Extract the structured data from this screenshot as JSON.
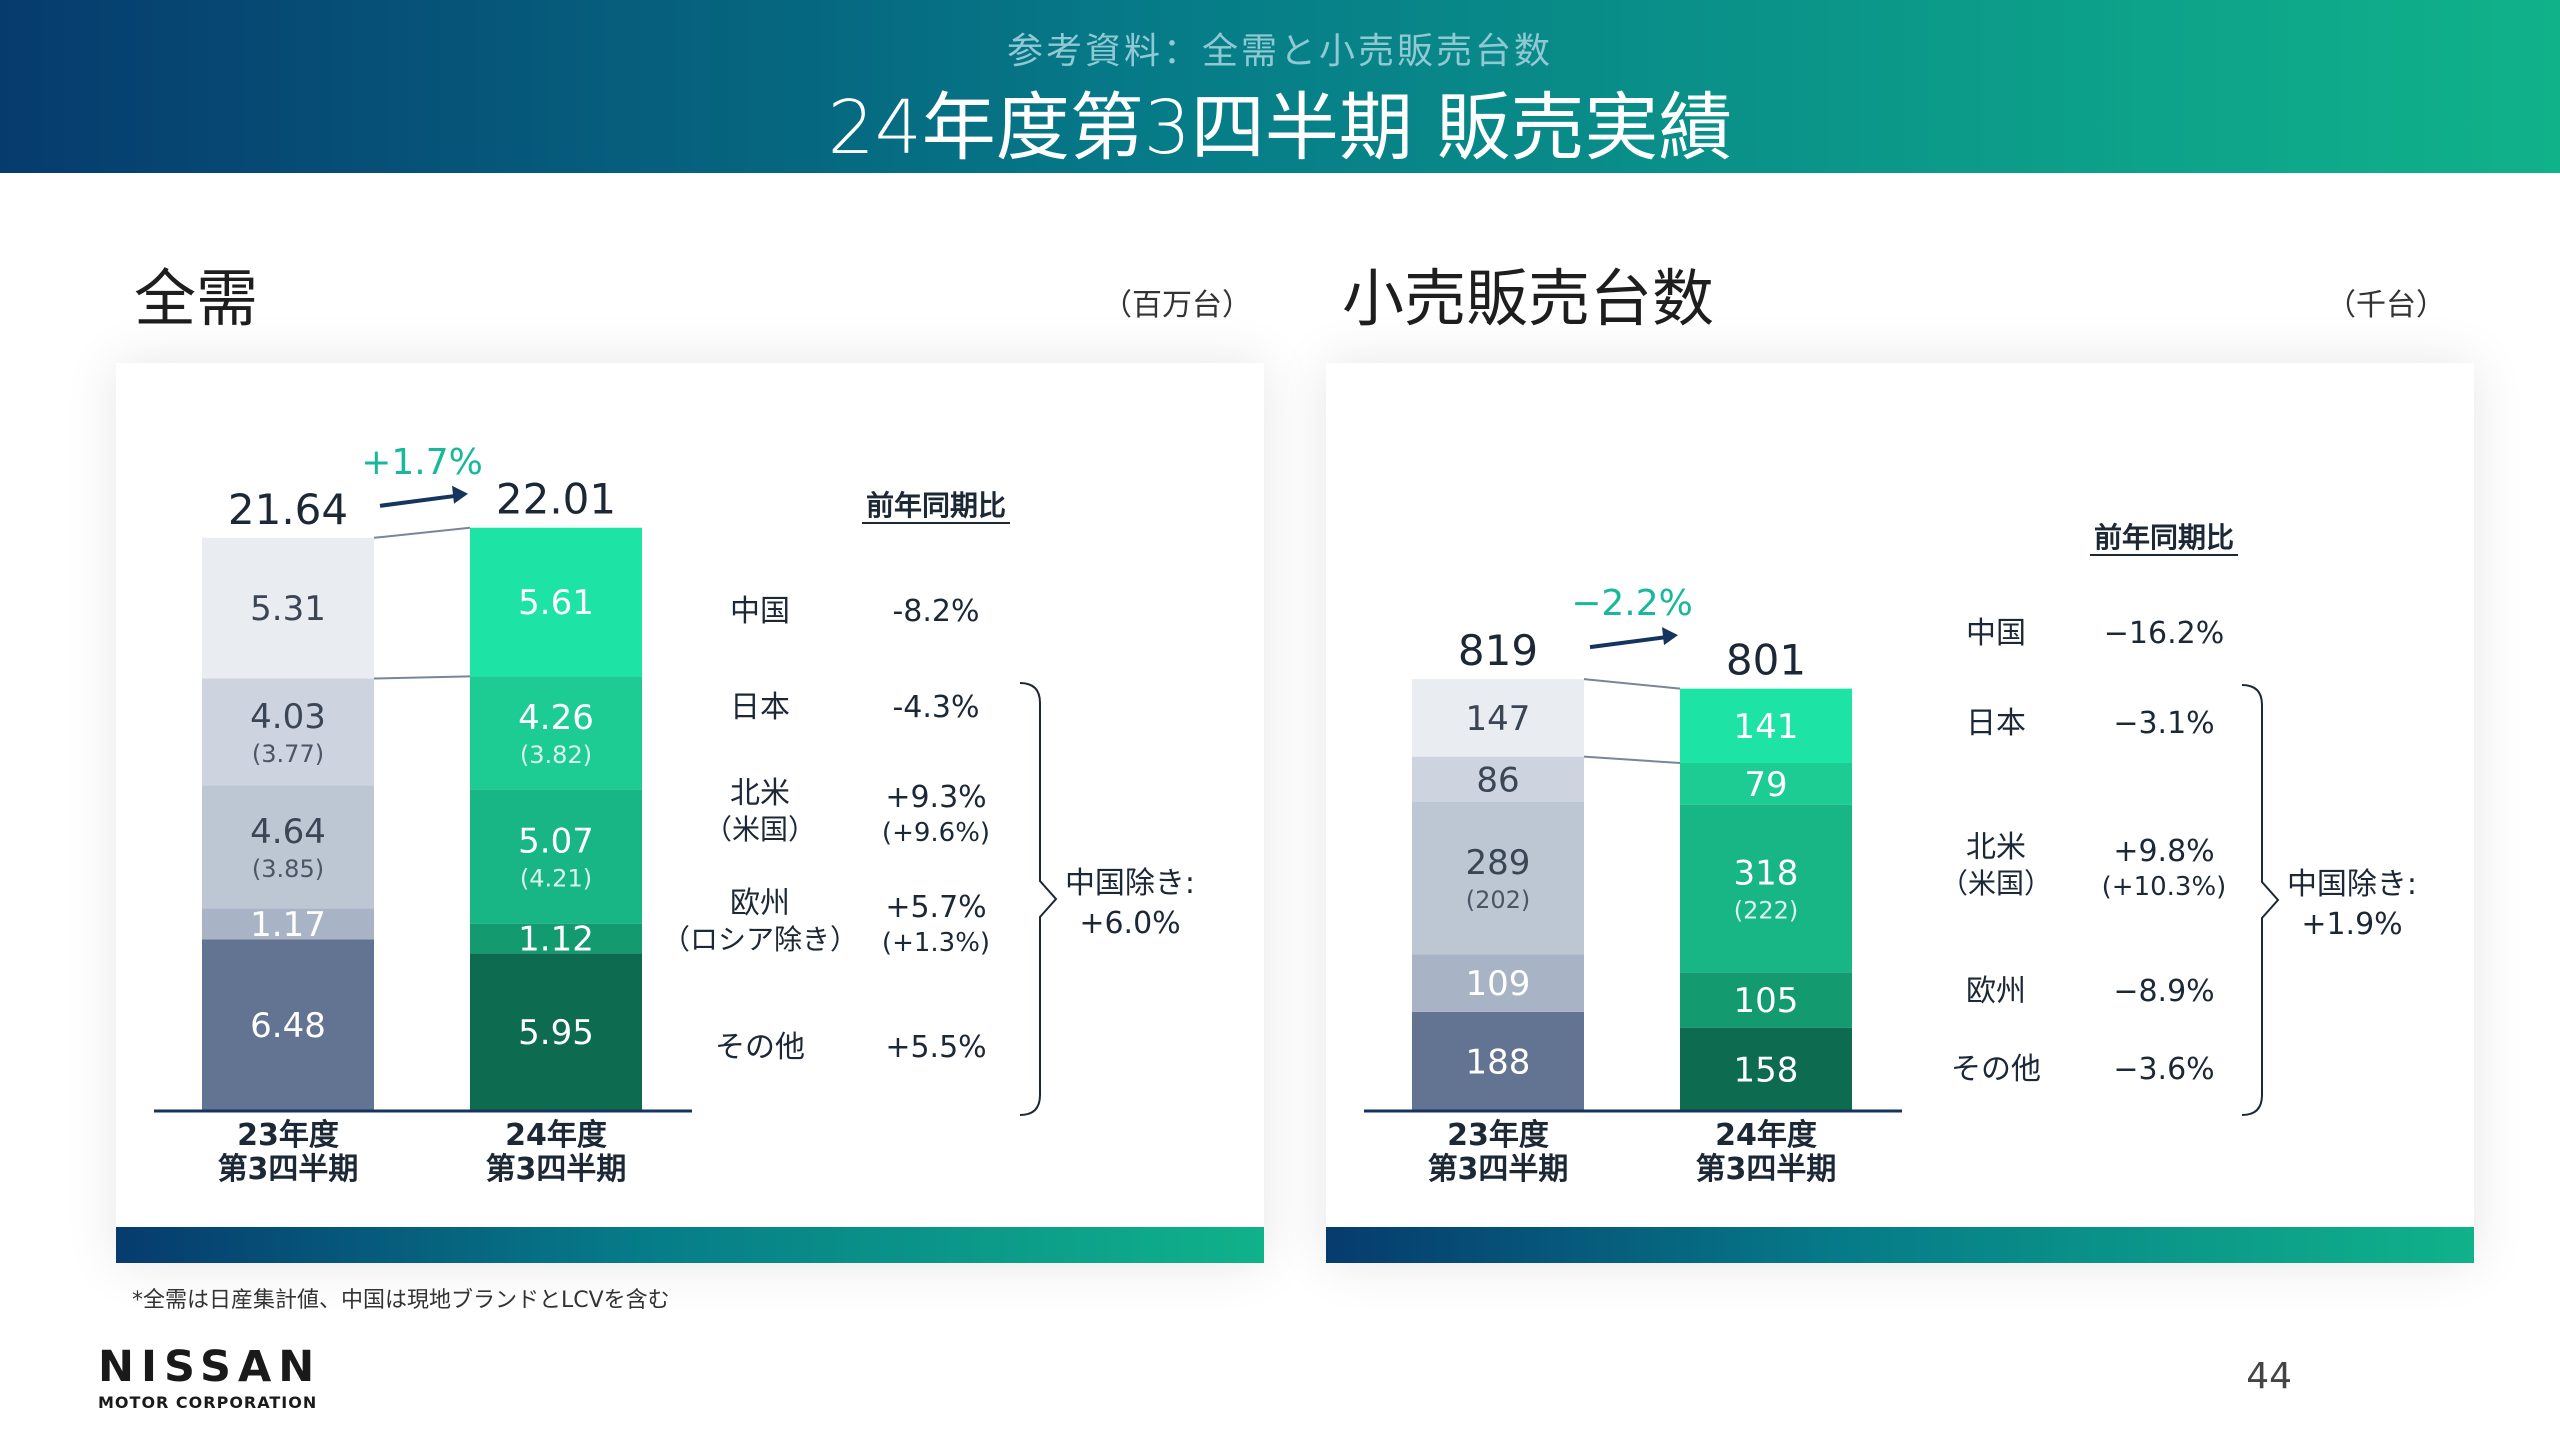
{
  "header": {
    "subtitle": "参考資料：全需と小売販売台数",
    "title": "24年度第3四半期 販売実績"
  },
  "left": {
    "title": "全需",
    "unit": "（百万台）",
    "yoy_header": "前年同期比",
    "bracket_label": [
      "中国除き:",
      "+6.0%"
    ]
  },
  "right": {
    "title": "小売販売台数",
    "unit": "（千台）",
    "yoy_header": "前年同期比",
    "bracket_label": [
      "中国除き:",
      "+1.9%"
    ]
  },
  "colors": {
    "prev": [
      "#627492",
      "#a8b3c6",
      "#bdc6d3",
      "#cdd4df",
      "#e9edf2"
    ],
    "curr": [
      "#0d6b4f",
      "#149a6f",
      "#19b685",
      "#1ccc93",
      "#1de4a4"
    ],
    "accent": "#19b89a",
    "arrow": "#15355e"
  },
  "chart_data": [
    {
      "type": "bar",
      "stacked": true,
      "categories": [
        "23年度\n第3四半期",
        "24年度\n第3四半期"
      ],
      "totals": [
        "21.64",
        "22.01"
      ],
      "change": "+1.7%",
      "series": [
        {
          "name": "中国",
          "values": [
            6.48,
            5.95
          ],
          "labels": [
            "6.48",
            "5.95"
          ],
          "sub": [
            "",
            ""
          ],
          "yoy": "-8.2%",
          "yoy_sub": ""
        },
        {
          "name": "日本",
          "values": [
            1.17,
            1.12
          ],
          "labels": [
            "1.17",
            "1.12"
          ],
          "sub": [
            "",
            ""
          ],
          "yoy": "-4.3%",
          "yoy_sub": ""
        },
        {
          "name": "北米",
          "name_sub": "（米国）",
          "values": [
            4.64,
            5.07
          ],
          "labels": [
            "4.64",
            "5.07"
          ],
          "sub": [
            "(3.85)",
            "(4.21)"
          ],
          "yoy": "+9.3%",
          "yoy_sub": "(+9.6%)"
        },
        {
          "name": "欧州",
          "name_sub": "（ロシア除き）",
          "values": [
            4.03,
            4.26
          ],
          "labels": [
            "4.03",
            "4.26"
          ],
          "sub": [
            "(3.77)",
            "(3.82)"
          ],
          "yoy": "+5.7%",
          "yoy_sub": "(+1.3%)"
        },
        {
          "name": "その他",
          "values": [
            5.31,
            5.61
          ],
          "labels": [
            "5.31",
            "5.61"
          ],
          "sub": [
            "",
            ""
          ],
          "yoy": "+5.5%",
          "yoy_sub": ""
        }
      ]
    },
    {
      "type": "bar",
      "stacked": true,
      "categories": [
        "23年度\n第3四半期",
        "24年度\n第3四半期"
      ],
      "totals": [
        "819",
        "801"
      ],
      "change": "−2.2%",
      "series": [
        {
          "name": "中国",
          "values": [
            188,
            158
          ],
          "labels": [
            "188",
            "158"
          ],
          "sub": [
            "",
            ""
          ],
          "yoy": "−16.2%",
          "yoy_sub": ""
        },
        {
          "name": "日本",
          "values": [
            109,
            105
          ],
          "labels": [
            "109",
            "105"
          ],
          "sub": [
            "",
            ""
          ],
          "yoy": "−3.1%",
          "yoy_sub": ""
        },
        {
          "name": "北米",
          "name_sub": "（米国）",
          "values": [
            289,
            318
          ],
          "labels": [
            "289",
            "318"
          ],
          "sub": [
            "(202)",
            "(222)"
          ],
          "yoy": "+9.8%",
          "yoy_sub": "(+10.3%)"
        },
        {
          "name": "欧州",
          "values": [
            86,
            79
          ],
          "labels": [
            "86",
            "79"
          ],
          "sub": [
            "",
            ""
          ],
          "yoy": "−8.9%",
          "yoy_sub": ""
        },
        {
          "name": "その他",
          "values": [
            147,
            141
          ],
          "labels": [
            "147",
            "141"
          ],
          "sub": [
            "",
            ""
          ],
          "yoy": "−3.6%",
          "yoy_sub": ""
        }
      ]
    }
  ],
  "footnote": "*全需は日産集計値、中国は現地ブランドとLCVを含む",
  "logo": {
    "main": "NISSAN",
    "sub": "MOTOR CORPORATION"
  },
  "page_number": "44"
}
